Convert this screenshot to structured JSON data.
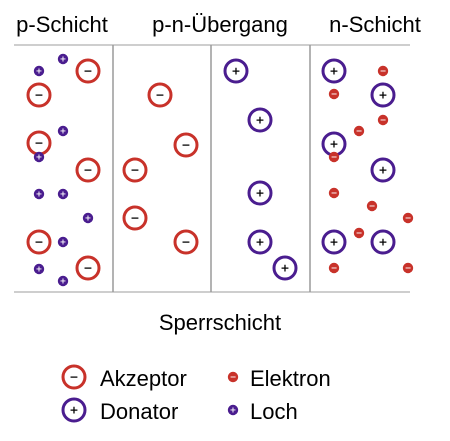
{
  "colors": {
    "acceptor_electron": "#c8322a",
    "donor_hole": "#4a1d8f",
    "divider": "#9a9a9a",
    "text": "#000000"
  },
  "headers": {
    "p_layer": "p-Schicht",
    "junction": "p-n-Übergang",
    "n_layer": "n-Schicht"
  },
  "depletion_label": "Sperrschicht",
  "symbols": {
    "minus": "−",
    "plus": "+"
  },
  "legend": {
    "acceptor": "Akzeptor",
    "electron": "Elektron",
    "donor": "Donator",
    "hole": "Loch"
  }
}
